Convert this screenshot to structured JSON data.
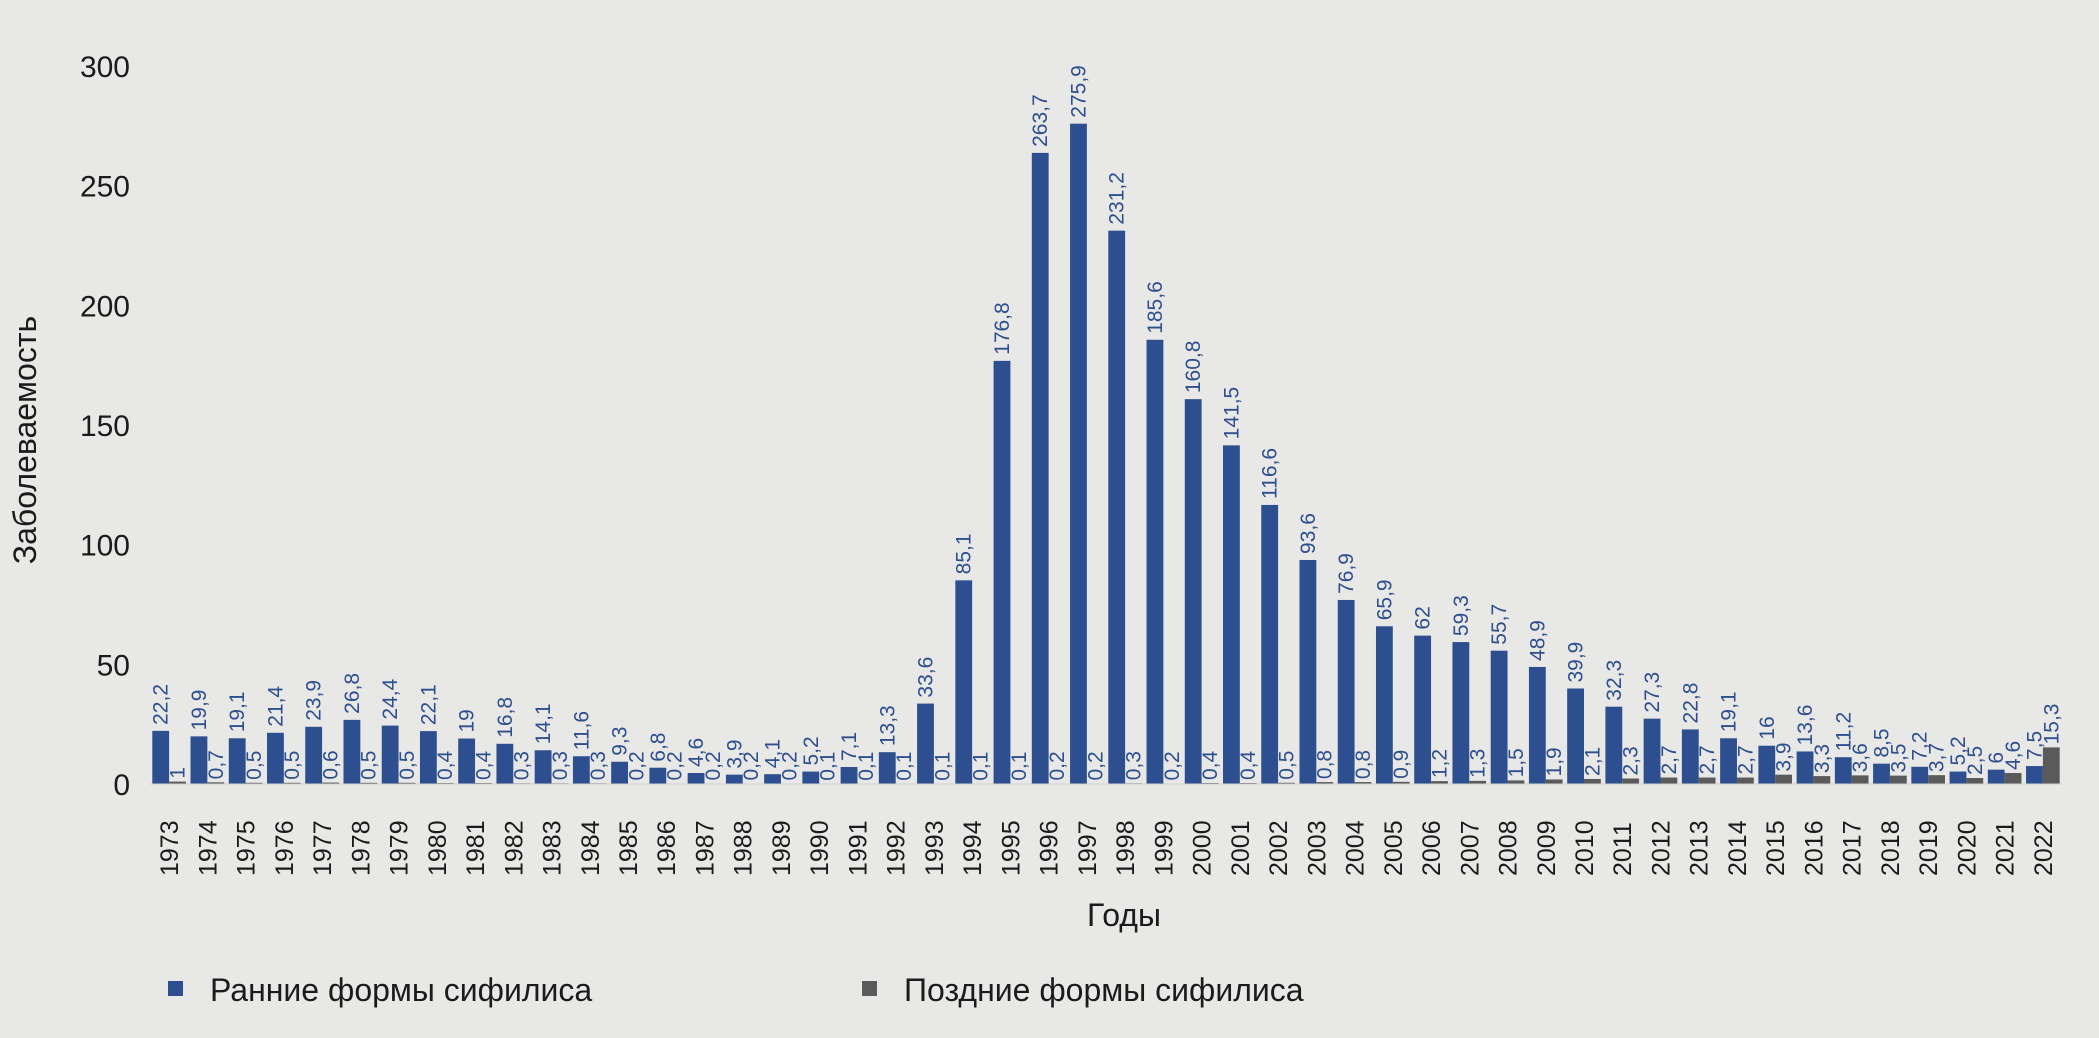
{
  "chart_data": {
    "type": "bar",
    "title": "",
    "xlabel": "Годы",
    "ylabel": "Заболеваемость",
    "ylim": [
      0,
      300
    ],
    "yticks": [
      0,
      50,
      100,
      150,
      200,
      250,
      300
    ],
    "grid": false,
    "legend_position": "bottom",
    "categories": [
      "1973",
      "1974",
      "1975",
      "1976",
      "1977",
      "1978",
      "1979",
      "1980",
      "1981",
      "1982",
      "1983",
      "1984",
      "1985",
      "1986",
      "1987",
      "1988",
      "1989",
      "1990",
      "1991",
      "1992",
      "1993",
      "1994",
      "1995",
      "1996",
      "1997",
      "1998",
      "1999",
      "2000",
      "2001",
      "2002",
      "2003",
      "2004",
      "2005",
      "2006",
      "2007",
      "2008",
      "2009",
      "2010",
      "2011",
      "2012",
      "2013",
      "2014",
      "2015",
      "2016",
      "2017",
      "2018",
      "2019",
      "2020",
      "2021",
      "2022"
    ],
    "series": [
      {
        "name": "Ранние формы сифилиса",
        "color": "#2e4f8f",
        "values": [
          22.2,
          19.9,
          19.1,
          21.4,
          23.9,
          26.8,
          24.4,
          22.1,
          19,
          16.8,
          14.1,
          11.6,
          9.3,
          6.8,
          4.6,
          3.9,
          4.1,
          5.2,
          7.1,
          13.3,
          33.6,
          85.1,
          176.8,
          263.7,
          275.9,
          231.2,
          185.6,
          160.8,
          141.5,
          116.6,
          93.6,
          76.9,
          65.9,
          62,
          59.3,
          55.7,
          48.9,
          39.9,
          32.3,
          27.3,
          22.8,
          19.1,
          16,
          13.6,
          11.2,
          8.5,
          7.2,
          5.2,
          6,
          7.5
        ],
        "labels": [
          "22,2",
          "19,9",
          "19,1",
          "21,4",
          "23,9",
          "26,8",
          "24,4",
          "22,1",
          "19",
          "16,8",
          "14,1",
          "11,6",
          "9,3",
          "6,8",
          "4,6",
          "3,9",
          "4,1",
          "5,2",
          "7,1",
          "13,3",
          "33,6",
          "85,1",
          "176,8",
          "263,7",
          "275,9",
          "231,2",
          "185,6",
          "160,8",
          "141,5",
          "116,6",
          "93,6",
          "76,9",
          "65,9",
          "62",
          "59,3",
          "55,7",
          "48,9",
          "39,9",
          "32,3",
          "27,3",
          "22,8",
          "19,1",
          "16",
          "13,6",
          "11,2",
          "8,5",
          "7,2",
          "5,2",
          "6",
          "7,5"
        ]
      },
      {
        "name": "Поздние формы сифилиса",
        "color": "#5a5a5a",
        "values": [
          1,
          0.7,
          0.5,
          0.5,
          0.6,
          0.5,
          0.5,
          0.4,
          0.4,
          0.3,
          0.3,
          0.3,
          0.2,
          0.2,
          0.2,
          0.2,
          0.2,
          0.1,
          0.1,
          0.1,
          0.1,
          0.1,
          0.1,
          0.2,
          0.2,
          0.3,
          0.2,
          0.4,
          0.4,
          0.5,
          0.8,
          0.8,
          0.9,
          1.2,
          1.3,
          1.5,
          1.9,
          2.1,
          2.3,
          2.7,
          2.7,
          2.7,
          3.9,
          3.3,
          3.6,
          3.5,
          3.7,
          2.5,
          4.6,
          15.3
        ],
        "labels": [
          "1",
          "0,7",
          "0,5",
          "0,5",
          "0,6",
          "0,5",
          "0,5",
          "0,4",
          "0,4",
          "0,3",
          "0,3",
          "0,3",
          "0,2",
          "0,2",
          "0,2",
          "0,2",
          "0,2",
          "0,1",
          "0,1",
          "0,1",
          "0,1",
          "0,1",
          "0,1",
          "0,2",
          "0,2",
          "0,3",
          "0,2",
          "0,4",
          "0,4",
          "0,5",
          "0,8",
          "0,8",
          "0,9",
          "1,2",
          "1,3",
          "1,5",
          "1,9",
          "2,1",
          "2,3",
          "2,7",
          "2,7",
          "2,7",
          "3,9",
          "3,3",
          "3,6",
          "3,5",
          "3,7",
          "2,5",
          "4,6",
          "15,3"
        ]
      }
    ]
  }
}
